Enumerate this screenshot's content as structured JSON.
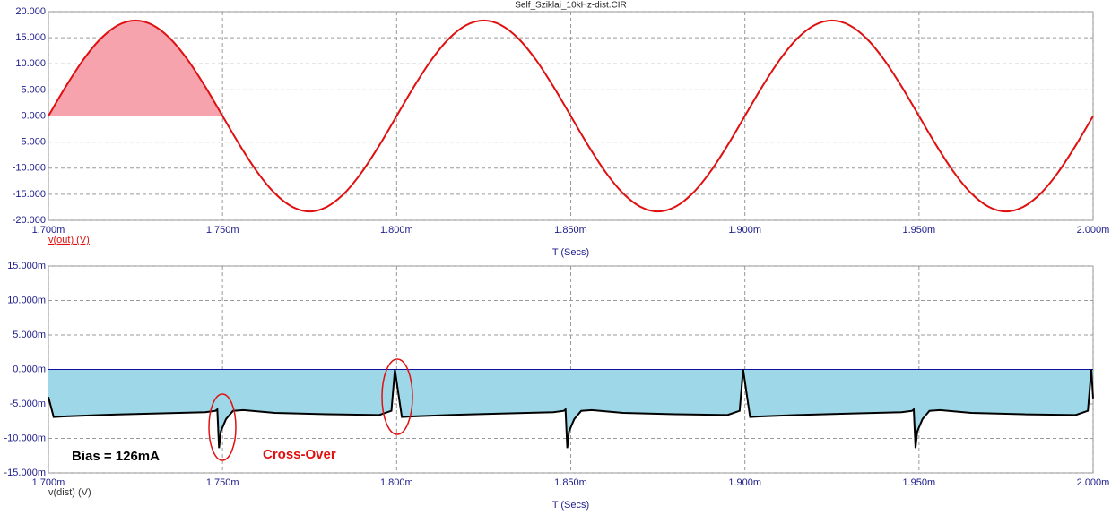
{
  "chart_data": [
    {
      "type": "line",
      "title": "Self_Sziklai_10kHz-dist.CIR",
      "xlabel": "T (Secs)",
      "x": [
        0.0017,
        0.001705,
        0.00171,
        0.001715,
        0.00172,
        0.001725,
        0.00173,
        0.001735,
        0.00174,
        0.001745,
        0.00175,
        0.001755,
        0.00176,
        0.001765,
        0.00177,
        0.001775,
        0.00178,
        0.001785,
        0.00179,
        0.001795,
        0.0018,
        0.001805,
        0.00181,
        0.001815,
        0.00182,
        0.001825,
        0.00183,
        0.001835,
        0.00184,
        0.001845,
        0.00185,
        0.001855,
        0.00186,
        0.001865,
        0.00187,
        0.001875,
        0.00188,
        0.001885,
        0.00189,
        0.001895,
        0.0019,
        0.001905,
        0.00191,
        0.001915,
        0.00192,
        0.001925,
        0.00193,
        0.001935,
        0.00194,
        0.001945,
        0.00195,
        0.001955,
        0.00196,
        0.001965,
        0.00197,
        0.001975,
        0.00198,
        0.001985,
        0.00199,
        0.001995,
        0.002
      ],
      "series": [
        {
          "name": "v(out) (V)",
          "color": "#e01010",
          "values": [
            0,
            5.65,
            10.76,
            14.81,
            17.4,
            18.3,
            17.4,
            14.81,
            10.76,
            5.65,
            0,
            -5.65,
            -10.76,
            -14.81,
            -17.4,
            -18.3,
            -17.4,
            -14.81,
            -10.76,
            -5.65,
            0,
            5.65,
            10.76,
            14.81,
            17.4,
            18.3,
            17.4,
            14.81,
            10.76,
            5.65,
            0,
            -5.65,
            -10.76,
            -14.81,
            -17.4,
            -18.3,
            -17.4,
            -14.81,
            -10.76,
            -5.65,
            0,
            5.65,
            10.76,
            14.81,
            17.4,
            18.3,
            17.4,
            14.81,
            10.76,
            5.65,
            0,
            -5.65,
            -10.76,
            -14.81,
            -17.4,
            -18.3,
            -17.4,
            -14.81,
            -10.76,
            -5.65,
            0
          ]
        }
      ],
      "xlim": [
        0.0017,
        0.002
      ],
      "xticks": [
        {
          "value": 0.0017,
          "label": "1.700m"
        },
        {
          "value": 0.00175,
          "label": "1.750m"
        },
        {
          "value": 0.0018,
          "label": "1.800m"
        },
        {
          "value": 0.00185,
          "label": "1.850m"
        },
        {
          "value": 0.0019,
          "label": "1.900m"
        },
        {
          "value": 0.00195,
          "label": "1.950m"
        },
        {
          "value": 0.002,
          "label": "2.000m"
        }
      ],
      "ylim": [
        -20,
        20
      ],
      "yticks": [
        {
          "value": 20,
          "label": "20.000"
        },
        {
          "value": 15,
          "label": "15.000"
        },
        {
          "value": 10,
          "label": "10.000"
        },
        {
          "value": 5,
          "label": "5.000"
        },
        {
          "value": 0,
          "label": "0.000"
        },
        {
          "value": -5,
          "label": "-5.000"
        },
        {
          "value": -10,
          "label": "-10.000"
        },
        {
          "value": -15,
          "label": "-15.000"
        },
        {
          "value": -20,
          "label": "-20.000"
        }
      ],
      "grid": true,
      "smooth": true,
      "zero_line_color": "#1010a0",
      "area_color": "#f7a3ae",
      "area_extent": "first-positive-lobe"
    },
    {
      "type": "line",
      "xlabel": "T (Secs)",
      "x": [
        0.0017,
        0.0017015,
        0.001705,
        0.001715,
        0.00173,
        0.001745,
        0.001748,
        0.0017485,
        0.001749,
        0.0017495,
        0.001751,
        0.001753,
        0.001756,
        0.001765,
        0.00178,
        0.001795,
        0.0017985,
        0.0017995,
        0.0018005,
        0.0018015,
        0.001805,
        0.001815,
        0.00183,
        0.001845,
        0.001848,
        0.0018485,
        0.001849,
        0.0018495,
        0.001851,
        0.001853,
        0.001856,
        0.001865,
        0.00188,
        0.001895,
        0.0018985,
        0.0018995,
        0.0019005,
        0.0019015,
        0.001905,
        0.001915,
        0.00193,
        0.001945,
        0.001948,
        0.0019485,
        0.001949,
        0.0019495,
        0.001951,
        0.001953,
        0.001956,
        0.001965,
        0.00198,
        0.001995,
        0.0019985,
        0.0019995,
        0.002
      ],
      "series": [
        {
          "name": "v(dist) (V)",
          "color": "#000000",
          "values": [
            -0.004,
            -0.0069,
            -0.0068,
            -0.0066,
            -0.0064,
            -0.0062,
            -0.006,
            -0.0058,
            -0.0114,
            -0.009,
            -0.0072,
            -0.006,
            -0.0059,
            -0.0063,
            -0.0065,
            -0.0066,
            -0.006,
            0,
            -0.0035,
            -0.0069,
            -0.0068,
            -0.0066,
            -0.0064,
            -0.0062,
            -0.006,
            -0.0058,
            -0.0114,
            -0.009,
            -0.0072,
            -0.006,
            -0.0059,
            -0.0063,
            -0.0065,
            -0.0066,
            -0.006,
            0,
            -0.0035,
            -0.0069,
            -0.0068,
            -0.0066,
            -0.0064,
            -0.0062,
            -0.006,
            -0.0058,
            -0.0114,
            -0.009,
            -0.0072,
            -0.006,
            -0.0059,
            -0.0063,
            -0.0065,
            -0.0066,
            -0.006,
            0,
            -0.0042
          ]
        }
      ],
      "xlim": [
        0.0017,
        0.002
      ],
      "xticks": [
        {
          "value": 0.0017,
          "label": "1.700m"
        },
        {
          "value": 0.00175,
          "label": "1.750m"
        },
        {
          "value": 0.0018,
          "label": "1.800m"
        },
        {
          "value": 0.00185,
          "label": "1.850m"
        },
        {
          "value": 0.0019,
          "label": "1.900m"
        },
        {
          "value": 0.00195,
          "label": "1.950m"
        },
        {
          "value": 0.002,
          "label": "2.000m"
        }
      ],
      "ylim": [
        -0.015,
        0.015
      ],
      "yticks": [
        {
          "value": 0.015,
          "label": "15.000m"
        },
        {
          "value": 0.01,
          "label": "10.000m"
        },
        {
          "value": 0.005,
          "label": "5.000m"
        },
        {
          "value": 0,
          "label": "0.000m"
        },
        {
          "value": -0.005,
          "label": "-5.000m"
        },
        {
          "value": -0.01,
          "label": "-10.000m"
        },
        {
          "value": -0.015,
          "label": "-15.000m"
        }
      ],
      "grid": true,
      "smooth": false,
      "zero_line_color": "#1010a0",
      "area_color": "#9ed8e8",
      "area_extent": "full",
      "annotations": [
        {
          "text": "Bias = 126mA",
          "color": "#000000"
        },
        {
          "text": "Cross-Over",
          "color": "#e01010"
        }
      ]
    }
  ]
}
